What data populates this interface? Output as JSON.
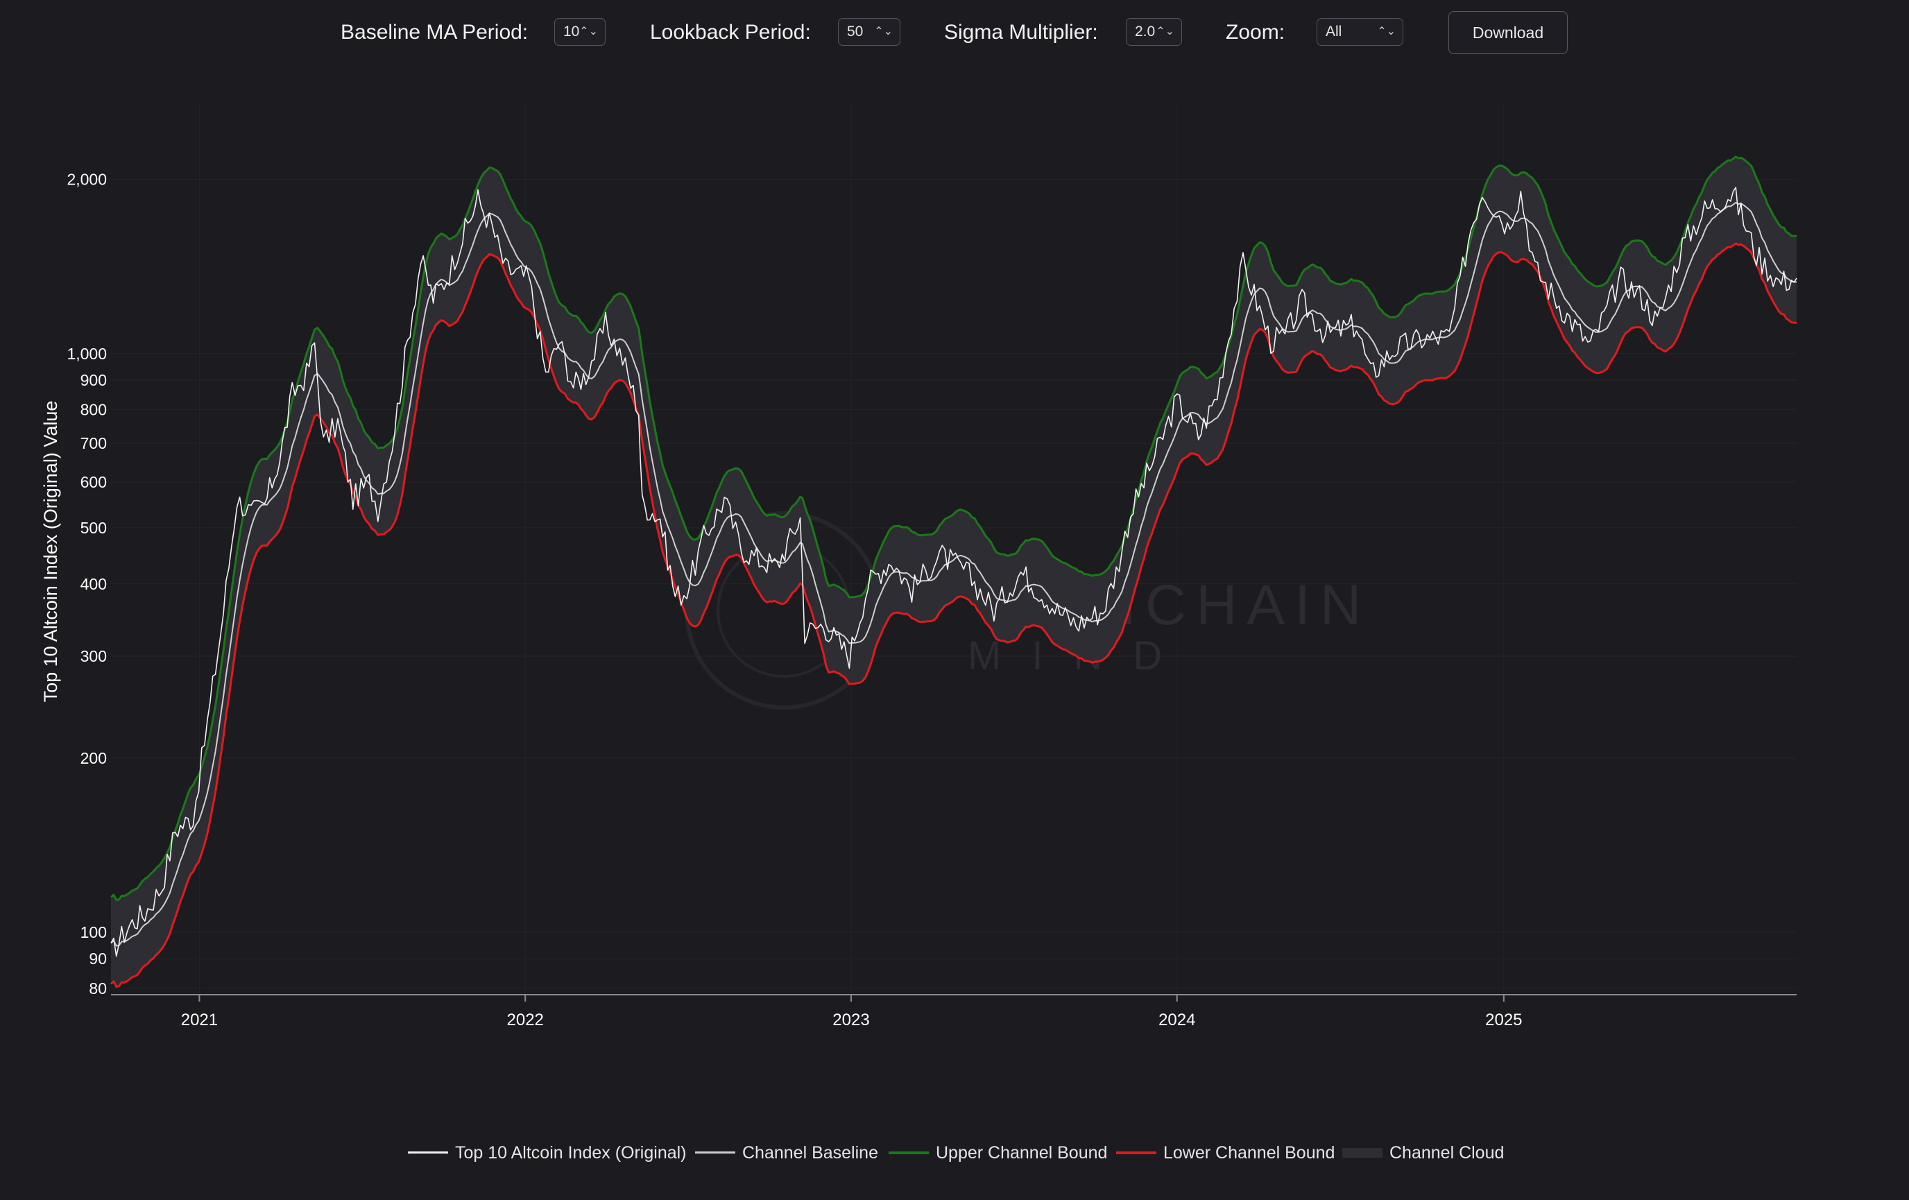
{
  "controls": {
    "baseline_label": "Baseline MA Period:",
    "baseline_value": "10",
    "lookback_label": "Lookback Period:",
    "lookback_value": "50",
    "sigma_label": "Sigma Multiplier:",
    "sigma_value": "2.0",
    "zoom_label": "Zoom:",
    "zoom_value": "All",
    "download_label": "Download"
  },
  "watermark": {
    "line1": "ONCHAIN",
    "line2": "MIND"
  },
  "legend": {
    "index": "Top 10 Altcoin Index (Original)",
    "baseline": "Channel Baseline",
    "upper": "Upper Channel Bound",
    "lower": "Lower Channel Bound",
    "cloud": "Channel Cloud"
  },
  "colors": {
    "background": "#1b1b20",
    "index": "#f2f2f2",
    "baseline": "#cfcfcf",
    "upper": "#1a7a17",
    "lower": "#e11b1b",
    "cloud": "#2d2d33"
  },
  "chart_data": {
    "type": "line",
    "scale": "log",
    "ylabel": "Top 10 Altcoin Index (Original) Value",
    "xlabel": "",
    "ylim": [
      78,
      2700
    ],
    "xlim": [
      "2020-09-24",
      "2025-11-25"
    ],
    "y_ticks": [
      {
        "value": 80,
        "label": "80"
      },
      {
        "value": 90,
        "label": "90"
      },
      {
        "value": 100,
        "label": "100"
      },
      {
        "value": 200,
        "label": "200"
      },
      {
        "value": 300,
        "label": "300"
      },
      {
        "value": 400,
        "label": "400"
      },
      {
        "value": 500,
        "label": "500"
      },
      {
        "value": 600,
        "label": "600"
      },
      {
        "value": 700,
        "label": "700"
      },
      {
        "value": 800,
        "label": "800"
      },
      {
        "value": 900,
        "label": "900"
      },
      {
        "value": 1000,
        "label": "1,000"
      },
      {
        "value": 2000,
        "label": "2,000"
      }
    ],
    "x_ticks": [
      {
        "date": "2021-01-01",
        "label": "2021"
      },
      {
        "date": "2022-01-01",
        "label": "2022"
      },
      {
        "date": "2023-01-01",
        "label": "2023"
      },
      {
        "date": "2024-01-01",
        "label": "2024"
      },
      {
        "date": "2025-01-01",
        "label": "2025"
      }
    ],
    "grid": true,
    "legend_position": "bottom-center",
    "series": [
      {
        "name": "Top 10 Altcoin Index (Original)",
        "points": [
          [
            "2020-09-24",
            92
          ],
          [
            "2020-10-15",
            103
          ],
          [
            "2020-11-01",
            108
          ],
          [
            "2020-11-20",
            120
          ],
          [
            "2020-12-05",
            150
          ],
          [
            "2020-12-25",
            158
          ],
          [
            "2021-01-10",
            230
          ],
          [
            "2021-01-25",
            330
          ],
          [
            "2021-02-12",
            560
          ],
          [
            "2021-02-28",
            530
          ],
          [
            "2021-03-15",
            545
          ],
          [
            "2021-04-01",
            660
          ],
          [
            "2021-04-15",
            850
          ],
          [
            "2021-05-01",
            920
          ],
          [
            "2021-05-10",
            1040
          ],
          [
            "2021-05-20",
            700
          ],
          [
            "2021-06-05",
            760
          ],
          [
            "2021-06-22",
            560
          ],
          [
            "2021-07-10",
            600
          ],
          [
            "2021-07-20",
            540
          ],
          [
            "2021-08-05",
            700
          ],
          [
            "2021-08-25",
            1120
          ],
          [
            "2021-09-06",
            1450
          ],
          [
            "2021-09-20",
            1250
          ],
          [
            "2021-10-05",
            1350
          ],
          [
            "2021-10-20",
            1550
          ],
          [
            "2021-11-09",
            1850
          ],
          [
            "2021-11-25",
            1650
          ],
          [
            "2021-12-10",
            1400
          ],
          [
            "2022-01-05",
            1350
          ],
          [
            "2022-01-24",
            920
          ],
          [
            "2022-02-08",
            1050
          ],
          [
            "2022-02-24",
            880
          ],
          [
            "2022-03-10",
            920
          ],
          [
            "2022-04-01",
            1120
          ],
          [
            "2022-04-20",
            980
          ],
          [
            "2022-05-08",
            800
          ],
          [
            "2022-05-12",
            550
          ],
          [
            "2022-06-01",
            520
          ],
          [
            "2022-06-18",
            380
          ],
          [
            "2022-07-01",
            390
          ],
          [
            "2022-07-20",
            480
          ],
          [
            "2022-08-12",
            560
          ],
          [
            "2022-08-31",
            460
          ],
          [
            "2022-09-20",
            440
          ],
          [
            "2022-10-10",
            430
          ],
          [
            "2022-11-05",
            520
          ],
          [
            "2022-11-10",
            330
          ],
          [
            "2022-12-01",
            340
          ],
          [
            "2022-12-30",
            300
          ],
          [
            "2023-01-20",
            400
          ],
          [
            "2023-02-15",
            440
          ],
          [
            "2023-03-10",
            390
          ],
          [
            "2023-04-10",
            450
          ],
          [
            "2023-05-10",
            420
          ],
          [
            "2023-06-10",
            360
          ],
          [
            "2023-07-10",
            420
          ],
          [
            "2023-08-20",
            360
          ],
          [
            "2023-09-10",
            340
          ],
          [
            "2023-10-10",
            360
          ],
          [
            "2023-10-25",
            420
          ],
          [
            "2023-11-10",
            530
          ],
          [
            "2023-12-10",
            680
          ],
          [
            "2024-01-01",
            830
          ],
          [
            "2024-01-25",
            720
          ],
          [
            "2024-02-15",
            850
          ],
          [
            "2024-03-05",
            1200
          ],
          [
            "2024-03-15",
            1430
          ],
          [
            "2024-04-15",
            1050
          ],
          [
            "2024-05-01",
            1070
          ],
          [
            "2024-05-20",
            1230
          ],
          [
            "2024-06-15",
            1080
          ],
          [
            "2024-07-20",
            1120
          ],
          [
            "2024-08-05",
            920
          ],
          [
            "2024-09-01",
            1020
          ],
          [
            "2024-10-01",
            1060
          ],
          [
            "2024-11-01",
            1070
          ],
          [
            "2024-11-25",
            1650
          ],
          [
            "2024-12-08",
            1920
          ],
          [
            "2025-01-05",
            1660
          ],
          [
            "2025-01-20",
            1900
          ],
          [
            "2025-02-05",
            1400
          ],
          [
            "2025-03-10",
            1180
          ],
          [
            "2025-04-08",
            1030
          ],
          [
            "2025-05-12",
            1350
          ],
          [
            "2025-06-05",
            1250
          ],
          [
            "2025-06-22",
            1130
          ],
          [
            "2025-07-20",
            1540
          ],
          [
            "2025-08-14",
            1770
          ],
          [
            "2025-09-15",
            1900
          ],
          [
            "2025-10-11",
            1480
          ],
          [
            "2025-11-05",
            1330
          ],
          [
            "2025-11-25",
            1350
          ]
        ]
      }
    ],
    "channel": {
      "baseline_ma_period": 10,
      "lookback_period": 50,
      "sigma_multiplier": 2.0,
      "upper_factor_approx": 1.2,
      "lower_factor_approx": 0.85
    }
  }
}
